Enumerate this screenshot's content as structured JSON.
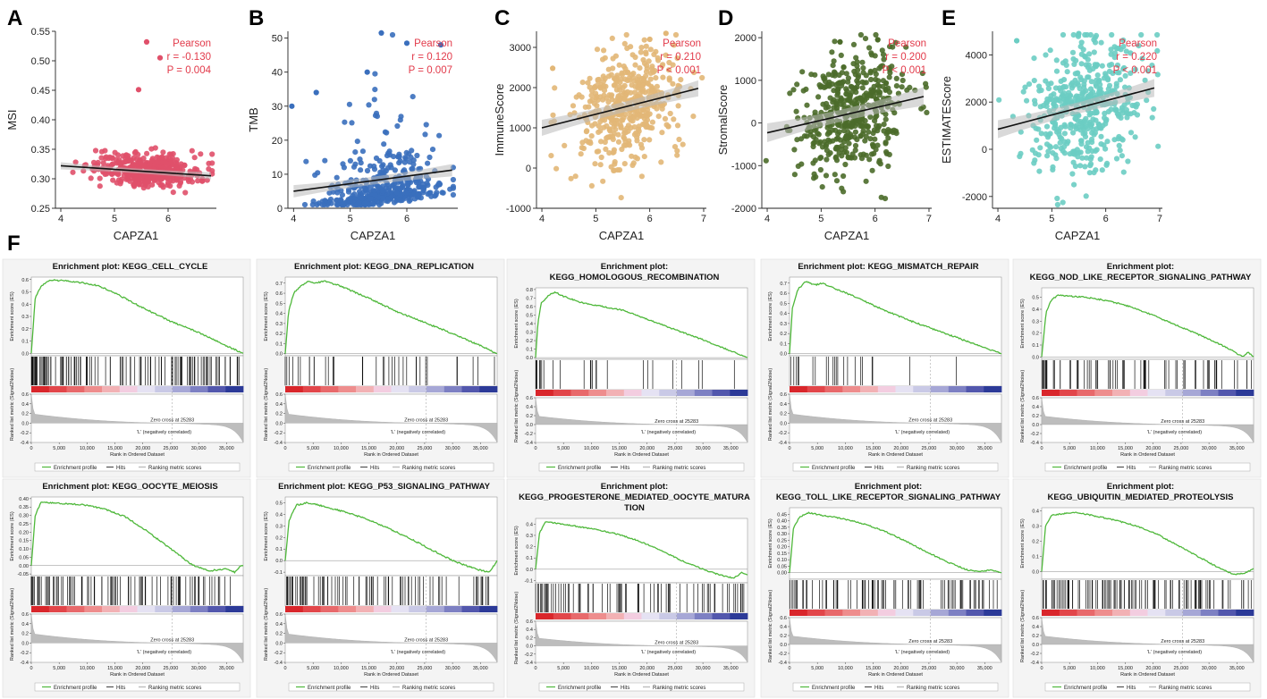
{
  "figure_letters": [
    "A",
    "B",
    "C",
    "D",
    "E",
    "F"
  ],
  "palette": {
    "stat_red": "#e23a4a",
    "es_green": "#4fb83b",
    "band_red": "#d9262b",
    "band_blue": "#2c3a98",
    "metric_gray": "#bdbdbd"
  },
  "chart_data": [
    {
      "id": "A",
      "type": "scatter",
      "xlabel": "CAPZA1",
      "ylabel": "MSI",
      "xlim": [
        3.9,
        6.9
      ],
      "ylim": [
        0.25,
        0.55
      ],
      "xticks": [
        "4",
        "5",
        "6"
      ],
      "xtick_values": [
        4,
        5,
        6
      ],
      "yticks": [
        "0.25",
        "0.30",
        "0.35",
        "0.40",
        "0.45",
        "0.50",
        "0.55"
      ],
      "ytick_values": [
        0.25,
        0.3,
        0.35,
        0.4,
        0.45,
        0.5,
        0.55
      ],
      "color": "#e0506a",
      "fit": {
        "x": [
          4.0,
          6.8
        ],
        "y": [
          0.322,
          0.305
        ],
        "ci": 0.006
      },
      "n_points": 400,
      "x_mean": 5.6,
      "x_sd": 0.5,
      "y_center": 0.315,
      "y_slope": -0.006,
      "y_sd": 0.014,
      "outliers": [
        [
          5.6,
          0.532
        ],
        [
          5.85,
          0.505
        ],
        [
          5.45,
          0.451
        ]
      ],
      "annotation": [
        "Pearson",
        "r = -0.130",
        "P = 0.004"
      ]
    },
    {
      "id": "B",
      "type": "scatter",
      "xlabel": "CAPZA1",
      "ylabel": "TMB",
      "xlim": [
        3.9,
        6.9
      ],
      "ylim": [
        0,
        52
      ],
      "xticks": [
        "4",
        "5",
        "6"
      ],
      "xtick_values": [
        4,
        5,
        6
      ],
      "yticks": [
        "0",
        "10",
        "20",
        "30",
        "40",
        "50"
      ],
      "ytick_values": [
        0,
        10,
        20,
        30,
        40,
        50
      ],
      "color": "#3a6fbd",
      "fit": {
        "x": [
          4.0,
          6.8
        ],
        "y": [
          5.0,
          11.2
        ],
        "ci": 1.8
      },
      "n_points": 450,
      "x_mean": 5.6,
      "x_sd": 0.5,
      "y_center": 7,
      "y_slope": 2.2,
      "y_sd": 8,
      "skew": true,
      "outliers": [
        [
          3.97,
          30
        ],
        [
          5.55,
          51.5
        ],
        [
          6.0,
          48.5
        ],
        [
          6.6,
          48
        ],
        [
          5.3,
          40
        ],
        [
          4.4,
          34
        ]
      ],
      "annotation": [
        "Pearson",
        "r = 0.120",
        "P = 0.007"
      ]
    },
    {
      "id": "C",
      "type": "scatter",
      "xlabel": "CAPZA1",
      "ylabel": "ImmuneScore",
      "xlim": [
        3.9,
        7.05
      ],
      "ylim": [
        -1000,
        3400
      ],
      "xticks": [
        "4",
        "5",
        "6",
        "7"
      ],
      "xtick_values": [
        4,
        5,
        6,
        7
      ],
      "yticks": [
        "-1000",
        "0",
        "1000",
        "2000",
        "3000"
      ],
      "ytick_values": [
        -1000,
        0,
        1000,
        2000,
        3000
      ],
      "color": "#e2b777",
      "fit": {
        "x": [
          4.0,
          6.9
        ],
        "y": [
          1000,
          1980
        ],
        "ci": 200
      },
      "n_points": 480,
      "x_mean": 5.6,
      "x_sd": 0.5,
      "y_center": 1550,
      "y_slope": 340,
      "y_sd": 720,
      "outliers": [
        [
          6.3,
          3350
        ],
        [
          6.0,
          3200
        ],
        [
          4.2,
          2480
        ]
      ],
      "annotation": [
        "Pearson",
        "r = 0.210",
        "P < 0.001"
      ]
    },
    {
      "id": "D",
      "type": "scatter",
      "xlabel": "CAPZA1",
      "ylabel": "StromalScore",
      "xlim": [
        3.9,
        7.05
      ],
      "ylim": [
        -2000,
        2150
      ],
      "xticks": [
        "4",
        "5",
        "6",
        "7"
      ],
      "xtick_values": [
        4,
        5,
        6,
        7
      ],
      "yticks": [
        "-2000",
        "-1000",
        "0",
        "1000",
        "2000"
      ],
      "ytick_values": [
        -2000,
        -1000,
        0,
        1000,
        2000
      ],
      "color": "#4b6b2a",
      "fit": {
        "x": [
          4.0,
          6.9
        ],
        "y": [
          -230,
          620
        ],
        "ci": 220
      },
      "n_points": 480,
      "x_mean": 5.6,
      "x_sd": 0.5,
      "y_center": 250,
      "y_slope": 300,
      "y_sd": 720,
      "outliers": [
        [
          6.05,
          1950
        ],
        [
          5.35,
          1900
        ]
      ],
      "annotation": [
        "Pearson",
        "r = 0.200",
        "P < 0.001"
      ]
    },
    {
      "id": "E",
      "type": "scatter",
      "xlabel": "CAPZA1",
      "ylabel": "ESTIMATEScore",
      "xlim": [
        3.9,
        7.05
      ],
      "ylim": [
        -2500,
        5000
      ],
      "xticks": [
        "4",
        "5",
        "6",
        "7"
      ],
      "xtick_values": [
        4,
        5,
        6,
        7
      ],
      "yticks": [
        "-2000",
        "0",
        "2000",
        "4000"
      ],
      "ytick_values": [
        -2000,
        0,
        2000,
        4000
      ],
      "color": "#6ccdc3",
      "fit": {
        "x": [
          4.0,
          6.9
        ],
        "y": [
          850,
          2600
        ],
        "ci": 380
      },
      "n_points": 480,
      "x_mean": 5.6,
      "x_sd": 0.5,
      "y_center": 1800,
      "y_slope": 600,
      "y_sd": 1350,
      "outliers": [
        [
          5.5,
          4900
        ],
        [
          4.35,
          4600
        ]
      ],
      "annotation": [
        "Pearson",
        "r = 0.220",
        "P < 0.001"
      ]
    }
  ],
  "gsea_common": {
    "es_ylabel": "Enrichment score (ES)",
    "metric_ylabel": "Ranked list metric (Signal2Noise)",
    "xlabel": "Rank in Ordered Dataset",
    "x_max": 38000,
    "xtick_labels": [
      "0",
      "5,000",
      "10,000",
      "15,000",
      "20,000",
      "25,000",
      "30,000",
      "35,000"
    ],
    "xtick_values": [
      0,
      5000,
      10000,
      15000,
      20000,
      25000,
      30000,
      35000
    ],
    "metric_ylim": [
      -0.4,
      0.6
    ],
    "metric_tick_labels": [
      "0.6",
      "0.4",
      "0.2",
      "0.0",
      "-0.2",
      "-0.4"
    ],
    "metric_tick_values": [
      0.6,
      0.4,
      0.2,
      0.0,
      -0.2,
      -0.4
    ],
    "pos_label": "'H' (positively correlated)",
    "neg_label": "'L' (negatively correlated)",
    "zero_cross": "Zero cross at 25283",
    "zero_cross_value": 25283,
    "legend": [
      "Enrichment profile",
      "Hits",
      "Ranking metric scores"
    ]
  },
  "gsea_plots": [
    {
      "title_lines": [
        "Enrichment plot: KEGG_CELL_CYCLE"
      ],
      "ylim": [
        -0.02,
        0.62
      ],
      "yticks": [
        "0.0",
        "0.1",
        "0.2",
        "0.3",
        "0.4",
        "0.5",
        "0.6"
      ],
      "ytick_values": [
        0,
        0.1,
        0.2,
        0.3,
        0.4,
        0.5,
        0.6
      ],
      "curve": [
        [
          0,
          0
        ],
        [
          700,
          0.45
        ],
        [
          1800,
          0.55
        ],
        [
          3500,
          0.595
        ],
        [
          6000,
          0.59
        ],
        [
          9000,
          0.575
        ],
        [
          12000,
          0.55
        ],
        [
          15000,
          0.49
        ],
        [
          20000,
          0.37
        ],
        [
          25000,
          0.26
        ],
        [
          30000,
          0.17
        ],
        [
          35000,
          0.06
        ],
        [
          37000,
          0.02
        ],
        [
          38000,
          0.0
        ]
      ],
      "hits": 120,
      "hit_bias": 0.5
    },
    {
      "title_lines": [
        "Enrichment plot: KEGG_DNA_REPLICATION"
      ],
      "ylim": [
        -0.02,
        0.76
      ],
      "yticks": [
        "0.0",
        "0.1",
        "0.2",
        "0.3",
        "0.4",
        "0.5",
        "0.6",
        "0.7"
      ],
      "ytick_values": [
        0,
        0.1,
        0.2,
        0.3,
        0.4,
        0.5,
        0.6,
        0.7
      ],
      "curve": [
        [
          0,
          0
        ],
        [
          600,
          0.42
        ],
        [
          1500,
          0.6
        ],
        [
          3000,
          0.68
        ],
        [
          4200,
          0.72
        ],
        [
          5500,
          0.7
        ],
        [
          7000,
          0.72
        ],
        [
          10000,
          0.67
        ],
        [
          15000,
          0.55
        ],
        [
          20000,
          0.42
        ],
        [
          25000,
          0.31
        ],
        [
          30000,
          0.2
        ],
        [
          35000,
          0.08
        ],
        [
          38000,
          0.0
        ]
      ],
      "hits": 36,
      "hit_bias": 0.7
    },
    {
      "title_lines": [
        "Enrichment plot:",
        "KEGG_HOMOLOGOUS_RECOMBINATION"
      ],
      "ylim": [
        -0.02,
        0.82
      ],
      "yticks": [
        "0.0",
        "0.1",
        "0.2",
        "0.3",
        "0.4",
        "0.5",
        "0.6",
        "0.7",
        "0.8"
      ],
      "ytick_values": [
        0,
        0.1,
        0.2,
        0.3,
        0.4,
        0.5,
        0.6,
        0.7,
        0.8
      ],
      "curve": [
        [
          0,
          0
        ],
        [
          400,
          0.4
        ],
        [
          1000,
          0.64
        ],
        [
          2500,
          0.74
        ],
        [
          3500,
          0.77
        ],
        [
          5000,
          0.72
        ],
        [
          8000,
          0.65
        ],
        [
          12000,
          0.6
        ],
        [
          16000,
          0.55
        ],
        [
          20000,
          0.45
        ],
        [
          25000,
          0.33
        ],
        [
          30000,
          0.21
        ],
        [
          35000,
          0.08
        ],
        [
          38000,
          0.0
        ]
      ],
      "hits": 26,
      "hit_bias": 0.6
    },
    {
      "title_lines": [
        "Enrichment plot: KEGG_MISMATCH_REPAIR"
      ],
      "ylim": [
        -0.02,
        0.76
      ],
      "yticks": [
        "0.0",
        "0.1",
        "0.2",
        "0.3",
        "0.4",
        "0.5",
        "0.6",
        "0.7"
      ],
      "ytick_values": [
        0,
        0.1,
        0.2,
        0.3,
        0.4,
        0.5,
        0.6,
        0.7
      ],
      "curve": [
        [
          0,
          0
        ],
        [
          500,
          0.45
        ],
        [
          1500,
          0.64
        ],
        [
          3000,
          0.72
        ],
        [
          4500,
          0.68
        ],
        [
          6000,
          0.7
        ],
        [
          8000,
          0.65
        ],
        [
          12000,
          0.56
        ],
        [
          17000,
          0.43
        ],
        [
          22000,
          0.32
        ],
        [
          27000,
          0.22
        ],
        [
          32000,
          0.12
        ],
        [
          36000,
          0.04
        ],
        [
          38000,
          0.0
        ]
      ],
      "hits": 22,
      "hit_bias": 0.6
    },
    {
      "title_lines": [
        "Enrichment plot:",
        "KEGG_NOD_LIKE_RECEPTOR_SIGNALING_PATHWAY"
      ],
      "ylim": [
        -0.02,
        0.58
      ],
      "yticks": [
        "0.0",
        "0.1",
        "0.2",
        "0.3",
        "0.4",
        "0.5"
      ],
      "ytick_values": [
        0,
        0.1,
        0.2,
        0.3,
        0.4,
        0.5
      ],
      "curve": [
        [
          0,
          0
        ],
        [
          800,
          0.38
        ],
        [
          1800,
          0.48
        ],
        [
          3000,
          0.52
        ],
        [
          5000,
          0.51
        ],
        [
          8000,
          0.5
        ],
        [
          12000,
          0.47
        ],
        [
          16000,
          0.42
        ],
        [
          20000,
          0.35
        ],
        [
          25000,
          0.25
        ],
        [
          30000,
          0.15
        ],
        [
          34000,
          0.06
        ],
        [
          36000,
          0.0
        ],
        [
          37000,
          0.04
        ],
        [
          38000,
          0.0
        ]
      ],
      "hits": 70,
      "hit_bias": 0.45
    },
    {
      "title_lines": [
        "Enrichment plot: KEGG_OOCYTE_MEIOSIS"
      ],
      "ylim": [
        -0.06,
        0.41
      ],
      "yticks": [
        "0.40",
        "0.35",
        "0.30",
        "0.25",
        "0.20",
        "0.15",
        "0.10",
        "0.05",
        "0.00",
        "-0.05"
      ],
      "ytick_values": [
        0.4,
        0.35,
        0.3,
        0.25,
        0.2,
        0.15,
        0.1,
        0.05,
        0.0,
        -0.05
      ],
      "curve": [
        [
          0,
          0
        ],
        [
          700,
          0.3
        ],
        [
          1800,
          0.38
        ],
        [
          3500,
          0.375
        ],
        [
          6000,
          0.37
        ],
        [
          9000,
          0.365
        ],
        [
          13000,
          0.34
        ],
        [
          17000,
          0.29
        ],
        [
          21000,
          0.2
        ],
        [
          25000,
          0.1
        ],
        [
          29000,
          0.0
        ],
        [
          32000,
          -0.03
        ],
        [
          35000,
          -0.02
        ],
        [
          36500,
          -0.04
        ],
        [
          37500,
          0.0
        ],
        [
          38000,
          0.0
        ]
      ],
      "hits": 90,
      "hit_bias": 0.3
    },
    {
      "title_lines": [
        "Enrichment plot: KEGG_P53_SIGNALING_PATHWAY"
      ],
      "ylim": [
        -0.13,
        0.55
      ],
      "yticks": [
        "0.5",
        "0.4",
        "0.3",
        "0.2",
        "0.1",
        "0.0",
        "-0.1"
      ],
      "ytick_values": [
        0.5,
        0.4,
        0.3,
        0.2,
        0.1,
        0.0,
        -0.1
      ],
      "curve": [
        [
          0,
          0
        ],
        [
          700,
          0.35
        ],
        [
          2000,
          0.48
        ],
        [
          4000,
          0.5
        ],
        [
          6000,
          0.48
        ],
        [
          10000,
          0.43
        ],
        [
          14000,
          0.37
        ],
        [
          18000,
          0.29
        ],
        [
          22000,
          0.2
        ],
        [
          26000,
          0.1
        ],
        [
          30000,
          0.0
        ],
        [
          34000,
          -0.07
        ],
        [
          36500,
          -0.1
        ],
        [
          37500,
          -0.04
        ],
        [
          38000,
          0.0
        ]
      ],
      "hits": 80,
      "hit_bias": 0.3
    },
    {
      "title_lines": [
        "Enrichment plot:",
        "KEGG_PROGESTERONE_MEDIATED_OOCYTE_MATURA",
        "TION"
      ],
      "ylim": [
        -0.12,
        0.45
      ],
      "yticks": [
        "0.4",
        "0.3",
        "0.2",
        "0.1",
        "0.0",
        "-0.1"
      ],
      "ytick_values": [
        0.4,
        0.3,
        0.2,
        0.1,
        0.0,
        -0.1
      ],
      "curve": [
        [
          0,
          0
        ],
        [
          700,
          0.32
        ],
        [
          1800,
          0.42
        ],
        [
          3500,
          0.41
        ],
        [
          6000,
          0.39
        ],
        [
          10000,
          0.36
        ],
        [
          14000,
          0.32
        ],
        [
          18000,
          0.26
        ],
        [
          22000,
          0.18
        ],
        [
          26000,
          0.08
        ],
        [
          30000,
          0.0
        ],
        [
          33000,
          -0.05
        ],
        [
          35500,
          -0.08
        ],
        [
          37000,
          -0.03
        ],
        [
          38000,
          -0.05
        ]
      ],
      "hits": 75,
      "hit_bias": 0.3
    },
    {
      "title_lines": [
        "Enrichment plot:",
        "KEGG_TOLL_LIKE_RECEPTOR_SIGNALING_PATHWAY"
      ],
      "ylim": [
        -0.05,
        0.5
      ],
      "yticks": [
        "0.45",
        "0.40",
        "0.35",
        "0.30",
        "0.25",
        "0.20",
        "0.15",
        "0.10",
        "0.05",
        "0.00"
      ],
      "ytick_values": [
        0.45,
        0.4,
        0.35,
        0.3,
        0.25,
        0.2,
        0.15,
        0.1,
        0.05,
        0.0
      ],
      "curve": [
        [
          0,
          0
        ],
        [
          700,
          0.34
        ],
        [
          1800,
          0.43
        ],
        [
          3500,
          0.46
        ],
        [
          6000,
          0.44
        ],
        [
          9000,
          0.42
        ],
        [
          13000,
          0.38
        ],
        [
          17000,
          0.32
        ],
        [
          21000,
          0.24
        ],
        [
          25000,
          0.15
        ],
        [
          29000,
          0.07
        ],
        [
          32000,
          0.02
        ],
        [
          34000,
          0.01
        ],
        [
          36000,
          0.02
        ],
        [
          38000,
          0.0
        ]
      ],
      "hits": 85,
      "hit_bias": 0.3
    },
    {
      "title_lines": [
        "Enrichment plot:",
        "KEGG_UBIQUITIN_MEDIATED_PROTEOLYSIS"
      ],
      "ylim": [
        -0.05,
        0.42
      ],
      "yticks": [
        "0.4",
        "0.3",
        "0.2",
        "0.1",
        "0.0"
      ],
      "ytick_values": [
        0.4,
        0.3,
        0.2,
        0.1,
        0.0
      ],
      "curve": [
        [
          0,
          0
        ],
        [
          700,
          0.3
        ],
        [
          1800,
          0.37
        ],
        [
          3500,
          0.38
        ],
        [
          6000,
          0.39
        ],
        [
          9000,
          0.37
        ],
        [
          13000,
          0.34
        ],
        [
          17000,
          0.3
        ],
        [
          21000,
          0.24
        ],
        [
          25000,
          0.16
        ],
        [
          29000,
          0.08
        ],
        [
          32000,
          0.02
        ],
        [
          34500,
          -0.02
        ],
        [
          36500,
          -0.01
        ],
        [
          38000,
          0.02
        ]
      ],
      "hits": 110,
      "hit_bias": 0.15
    }
  ]
}
